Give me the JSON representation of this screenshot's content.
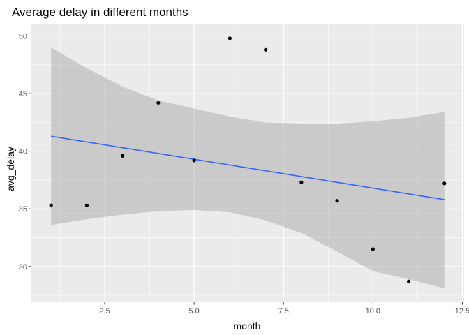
{
  "chart_data": {
    "type": "scatter",
    "title": "Average delay in different months",
    "xlabel": "month",
    "ylabel": "avg_delay",
    "xlim": [
      0.45,
      12.55
    ],
    "ylim": [
      26.9,
      51.0
    ],
    "x_ticks": [
      2.5,
      5.0,
      7.5,
      10.0,
      12.5
    ],
    "x_tick_labels": [
      "2.5",
      "5.0",
      "7.5",
      "10.0",
      "12.5"
    ],
    "y_ticks": [
      30,
      35,
      40,
      45,
      50
    ],
    "y_tick_labels": [
      "30",
      "35",
      "40",
      "45",
      "50"
    ],
    "grid": true,
    "points": [
      {
        "x": 1,
        "y": 35.3
      },
      {
        "x": 2,
        "y": 35.3
      },
      {
        "x": 3,
        "y": 39.6
      },
      {
        "x": 4,
        "y": 44.2
      },
      {
        "x": 5,
        "y": 39.2
      },
      {
        "x": 6,
        "y": 49.8
      },
      {
        "x": 7,
        "y": 48.8
      },
      {
        "x": 8,
        "y": 37.3
      },
      {
        "x": 9,
        "y": 35.7
      },
      {
        "x": 10,
        "y": 31.5
      },
      {
        "x": 11,
        "y": 28.7
      },
      {
        "x": 12,
        "y": 37.2
      }
    ],
    "trend": {
      "method": "linear",
      "x_range": [
        1,
        12
      ],
      "y_start": 41.3,
      "y_end": 35.8,
      "ci_upper": [
        {
          "x": 1,
          "y": 49.0
        },
        {
          "x": 2,
          "y": 47.2
        },
        {
          "x": 3,
          "y": 45.6
        },
        {
          "x": 4,
          "y": 44.4
        },
        {
          "x": 5,
          "y": 43.7
        },
        {
          "x": 6,
          "y": 43.0
        },
        {
          "x": 7,
          "y": 42.5
        },
        {
          "x": 8,
          "y": 42.4
        },
        {
          "x": 9,
          "y": 42.4
        },
        {
          "x": 10,
          "y": 42.6
        },
        {
          "x": 11,
          "y": 42.9
        },
        {
          "x": 12,
          "y": 43.4
        }
      ],
      "ci_lower": [
        {
          "x": 1,
          "y": 33.6
        },
        {
          "x": 2,
          "y": 34.1
        },
        {
          "x": 3,
          "y": 34.5
        },
        {
          "x": 4,
          "y": 34.8
        },
        {
          "x": 5,
          "y": 34.9
        },
        {
          "x": 6,
          "y": 34.7
        },
        {
          "x": 7,
          "y": 34.0
        },
        {
          "x": 8,
          "y": 32.9
        },
        {
          "x": 9,
          "y": 31.3
        },
        {
          "x": 10,
          "y": 29.6
        },
        {
          "x": 11,
          "y": 28.9
        },
        {
          "x": 12,
          "y": 28.1
        }
      ]
    },
    "colors": {
      "panel_background": "#ebebeb",
      "grid_major": "#ffffff",
      "confidence_band": "#999999",
      "trend_line": "#3366ff",
      "points": "#000000"
    }
  }
}
